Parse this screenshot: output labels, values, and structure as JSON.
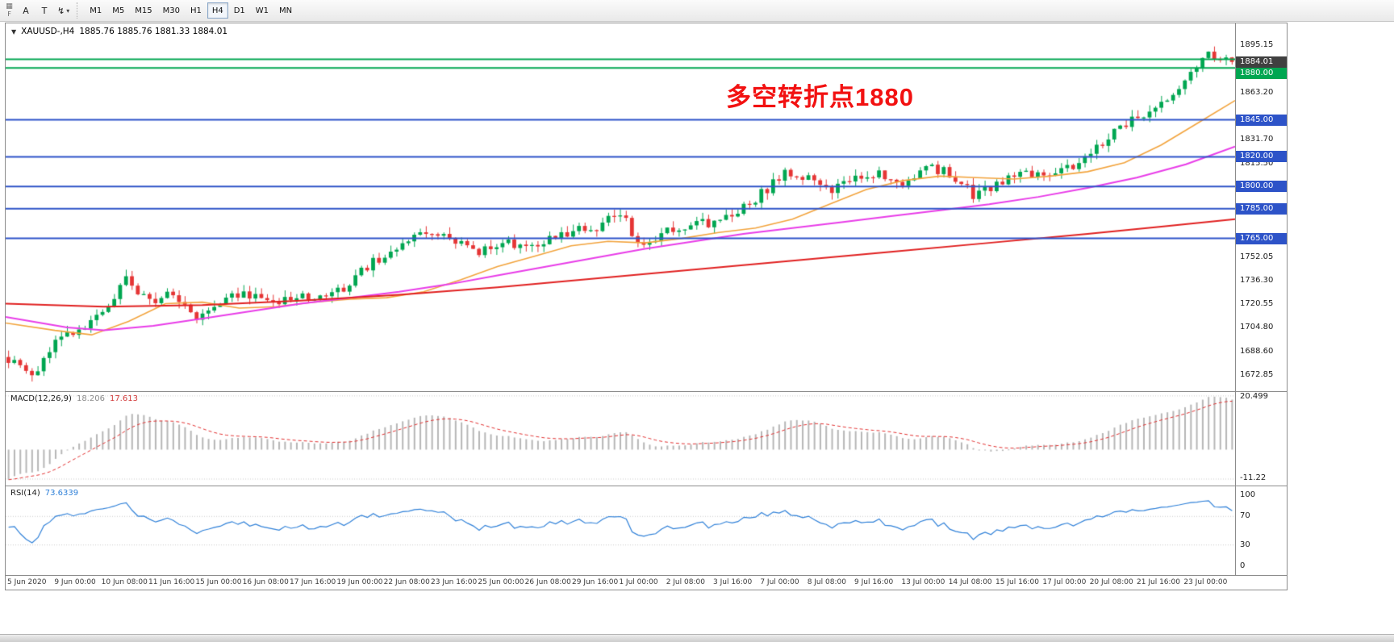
{
  "toolbar": {
    "handle_label": "F",
    "tool_buttons": [
      {
        "name": "grid-icon",
        "glyph": "▦"
      },
      {
        "name": "annotation-a",
        "label": "A"
      },
      {
        "name": "text-tool",
        "label": "T"
      },
      {
        "name": "chart-style",
        "glyph": "↯",
        "dropdown": "▾"
      }
    ],
    "timeframes": [
      {
        "label": "M1",
        "active": false
      },
      {
        "label": "M5",
        "active": false
      },
      {
        "label": "M15",
        "active": false
      },
      {
        "label": "M30",
        "active": false
      },
      {
        "label": "H1",
        "active": false
      },
      {
        "label": "H4",
        "active": true
      },
      {
        "label": "D1",
        "active": false
      },
      {
        "label": "W1",
        "active": false
      },
      {
        "label": "MN",
        "active": false
      }
    ]
  },
  "chart": {
    "expander_glyph": "▼",
    "title_symbol": "XAUUSD-,H4",
    "title_ohlc": "1885.76 1885.76 1881.33 1884.01",
    "annotation": {
      "text": "多空转折点1880",
      "color": "#f21111"
    }
  },
  "chart_data": {
    "type": "candlestick",
    "symbol": "XAUUSD",
    "timeframe": "H4",
    "title": "XAUUSD-,H4 1885.76 1885.76 1881.33 1884.01",
    "price_range": [
      1662,
      1910
    ],
    "bars": 209,
    "anchor_step": 4,
    "anchor_closes": [
      1684,
      1672,
      1694,
      1705,
      1715,
      1737,
      1722,
      1730,
      1712,
      1722,
      1728,
      1722,
      1724,
      1726,
      1729,
      1743,
      1754,
      1763,
      1770,
      1762,
      1756,
      1764,
      1760,
      1766,
      1770,
      1773,
      1781,
      1759,
      1770,
      1775,
      1776,
      1782,
      1795,
      1809,
      1807,
      1799,
      1804,
      1808,
      1803,
      1812,
      1809,
      1795,
      1801,
      1808,
      1809,
      1812,
      1821,
      1838,
      1846,
      1858,
      1870,
      1891,
      1884
    ],
    "noise": 3.5,
    "wick": 4.5,
    "last_close": 1884.01,
    "up_color": "#00a651",
    "down_color": "#e53535",
    "axis_ticks": [
      1895.15,
      1863.2,
      1831.7,
      1815.5,
      1752.05,
      1736.3,
      1720.55,
      1704.8,
      1688.6,
      1672.85
    ],
    "last_price_label": {
      "value": 1884.01,
      "text": "1884.01",
      "bg": "#404040"
    },
    "hlines": [
      {
        "price": 1885.76,
        "color": "#00a651",
        "width": 2,
        "label": ""
      },
      {
        "price": 1880.0,
        "color": "#00a651",
        "width": 2,
        "label": "1880.00"
      },
      {
        "price": 1845.0,
        "color": "#2d53c8",
        "width": 2,
        "label": "1845.00"
      },
      {
        "price": 1820.0,
        "color": "#2d53c8",
        "width": 2,
        "label": "1820.00"
      },
      {
        "price": 1800.0,
        "color": "#2d53c8",
        "width": 2,
        "label": "1800.00"
      },
      {
        "price": 1785.0,
        "color": "#2d53c8",
        "width": 2,
        "label": "1785.00"
      },
      {
        "price": 1765.0,
        "color": "#2d53c8",
        "width": 2,
        "label": "1765.00"
      }
    ],
    "moving_averages": [
      {
        "name": "ma-fast-orange",
        "color": "#f2a33c",
        "width": 1.6,
        "points": [
          [
            0,
            1708
          ],
          [
            0.04,
            1703
          ],
          [
            0.07,
            1700
          ],
          [
            0.1,
            1709
          ],
          [
            0.13,
            1721
          ],
          [
            0.16,
            1722
          ],
          [
            0.19,
            1718
          ],
          [
            0.22,
            1719
          ],
          [
            0.25,
            1722
          ],
          [
            0.28,
            1724
          ],
          [
            0.31,
            1725
          ],
          [
            0.34,
            1729
          ],
          [
            0.37,
            1737
          ],
          [
            0.4,
            1746
          ],
          [
            0.43,
            1753
          ],
          [
            0.46,
            1760
          ],
          [
            0.49,
            1763
          ],
          [
            0.52,
            1762
          ],
          [
            0.55,
            1765
          ],
          [
            0.58,
            1769
          ],
          [
            0.61,
            1772
          ],
          [
            0.64,
            1778
          ],
          [
            0.67,
            1788
          ],
          [
            0.7,
            1798
          ],
          [
            0.73,
            1804
          ],
          [
            0.76,
            1807
          ],
          [
            0.79,
            1806
          ],
          [
            0.82,
            1805
          ],
          [
            0.85,
            1807
          ],
          [
            0.88,
            1810
          ],
          [
            0.91,
            1816
          ],
          [
            0.94,
            1828
          ],
          [
            0.97,
            1843
          ],
          [
            1,
            1858
          ]
        ]
      },
      {
        "name": "ma-mid-magenta",
        "color": "#e83ce8",
        "width": 2,
        "points": [
          [
            0,
            1712
          ],
          [
            0.05,
            1705
          ],
          [
            0.08,
            1703
          ],
          [
            0.12,
            1706
          ],
          [
            0.16,
            1711
          ],
          [
            0.2,
            1716
          ],
          [
            0.24,
            1721
          ],
          [
            0.28,
            1725
          ],
          [
            0.32,
            1729
          ],
          [
            0.36,
            1734
          ],
          [
            0.4,
            1740
          ],
          [
            0.44,
            1746
          ],
          [
            0.48,
            1752
          ],
          [
            0.52,
            1758
          ],
          [
            0.56,
            1763
          ],
          [
            0.6,
            1768
          ],
          [
            0.64,
            1772
          ],
          [
            0.68,
            1776
          ],
          [
            0.72,
            1780
          ],
          [
            0.76,
            1784
          ],
          [
            0.8,
            1788
          ],
          [
            0.84,
            1793
          ],
          [
            0.88,
            1799
          ],
          [
            0.92,
            1806
          ],
          [
            0.96,
            1815
          ],
          [
            1,
            1827
          ]
        ]
      },
      {
        "name": "ma-slow-red",
        "color": "#e02020",
        "width": 2,
        "points": [
          [
            0,
            1721
          ],
          [
            0.08,
            1719
          ],
          [
            0.16,
            1720
          ],
          [
            0.24,
            1723
          ],
          [
            0.32,
            1727
          ],
          [
            0.4,
            1732
          ],
          [
            0.48,
            1738
          ],
          [
            0.56,
            1744
          ],
          [
            0.64,
            1750
          ],
          [
            0.72,
            1756
          ],
          [
            0.8,
            1762
          ],
          [
            0.88,
            1768
          ],
          [
            0.94,
            1773
          ],
          [
            1,
            1778
          ]
        ]
      }
    ],
    "time_labels": [
      "5 Jun 2020",
      "9 Jun 00:00",
      "10 Jun 08:00",
      "11 Jun 16:00",
      "15 Jun 00:00",
      "16 Jun 08:00",
      "17 Jun 16:00",
      "19 Jun 00:00",
      "22 Jun 08:00",
      "23 Jun 16:00",
      "25 Jun 00:00",
      "26 Jun 08:00",
      "29 Jun 16:00",
      "1 Jul 00:00",
      "2 Jul 08:00",
      "3 Jul 16:00",
      "7 Jul 00:00",
      "8 Jul 08:00",
      "9 Jul 16:00",
      "13 Jul 00:00",
      "14 Jul 08:00",
      "15 Jul 16:00",
      "17 Jul 00:00",
      "20 Jul 08:00",
      "21 Jul 16:00",
      "23 Jul 00:00"
    ],
    "label_every_bars": 8,
    "macd": {
      "name_label": "MACD(12,26,9)",
      "value_main": "18.206",
      "value_signal": "17.613",
      "axis_max": "20.499",
      "axis_min": "-11.22",
      "range": [
        22.0,
        -13.7
      ],
      "histogram_color": "#b6b6b6",
      "signal_color": "#e12f2f"
    },
    "rsi": {
      "name_label": "RSI(14)",
      "value": "73.6339",
      "axis_labels": [
        100,
        70,
        30,
        0
      ],
      "levels": [
        70,
        30
      ],
      "line_color": "#2f80d8"
    }
  }
}
